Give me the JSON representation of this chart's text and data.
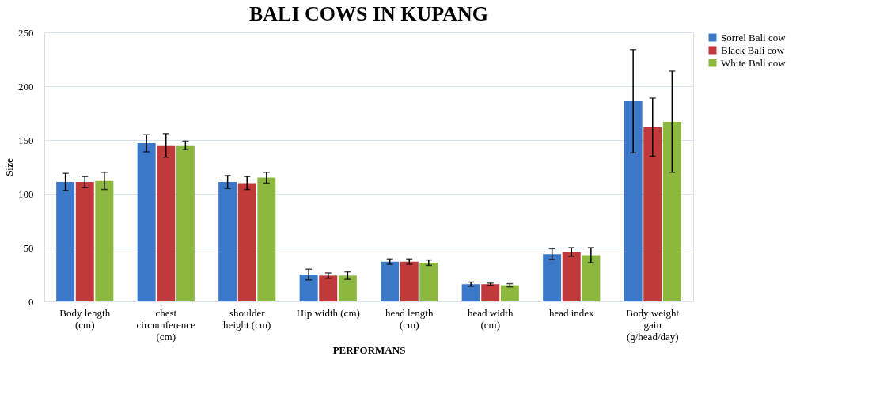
{
  "chart_data": {
    "type": "bar",
    "title": "BALI COWS IN KUPANG",
    "xlabel": "PERFORMANS",
    "ylabel": "Size",
    "categories": [
      "Body length (cm)",
      "chest circumference (cm)",
      "shoulder height (cm)",
      "Hip width (cm)",
      "head length (cm)",
      "head width (cm)",
      "head index",
      "Body weight gain (g/head/day)"
    ],
    "series": [
      {
        "name": "Sorrel Bali cow",
        "color": "#3c78c8",
        "values": [
          111,
          147,
          111,
          25,
          37,
          16,
          44,
          186
        ],
        "errors": [
          8,
          8,
          6,
          5,
          2.5,
          2,
          5,
          48
        ]
      },
      {
        "name": "Black Bali cow",
        "color": "#c0393b",
        "values": [
          111,
          145,
          110,
          24,
          37,
          16,
          46,
          162
        ],
        "errors": [
          5,
          11,
          6,
          2.5,
          2.5,
          1,
          4,
          27
        ]
      },
      {
        "name": "White Bali cow",
        "color": "#8db840",
        "values": [
          112,
          145,
          115,
          24,
          36,
          15,
          43,
          167
        ],
        "errors": [
          8,
          4,
          5,
          3.5,
          2.5,
          1.5,
          7,
          47
        ]
      }
    ],
    "ylim": [
      0,
      250
    ],
    "yticks": [
      0,
      50,
      100,
      150,
      200,
      250
    ],
    "grid": "y",
    "legend": "right"
  }
}
